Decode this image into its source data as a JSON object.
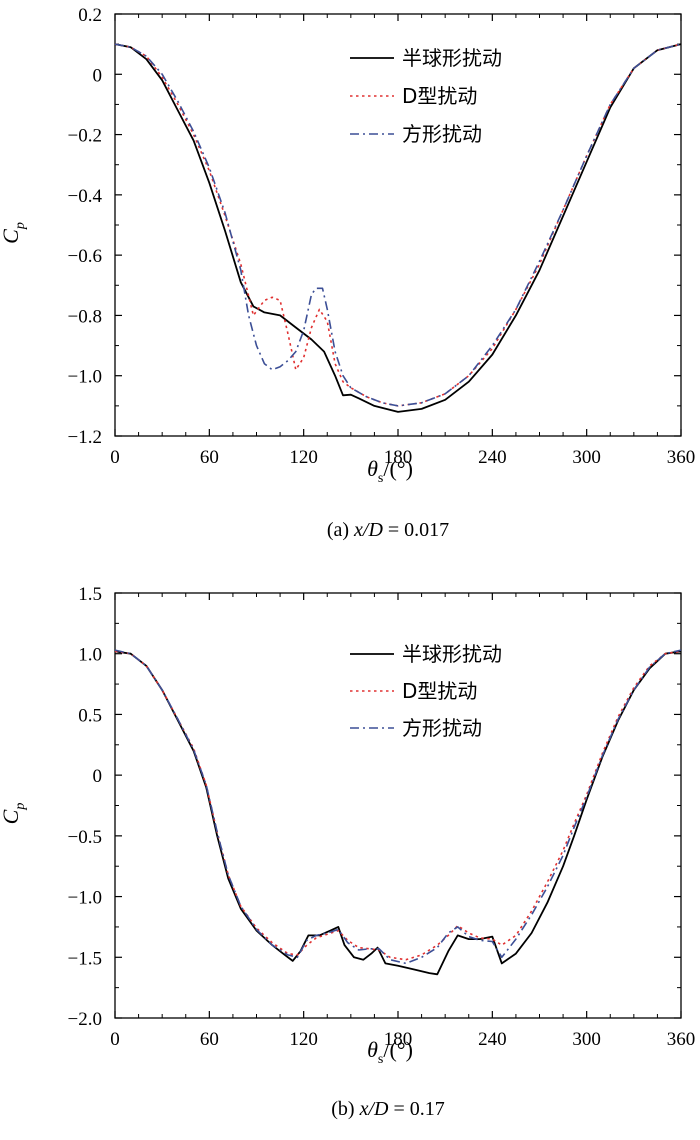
{
  "chart_data": [
    {
      "type": "line",
      "caption_prefix": "(a)  ",
      "caption_var": "x/D",
      "caption_value": " = 0.017",
      "xlabel_sym": "θ",
      "xlabel_sub": "s",
      "xlabel_unit": "/(°)",
      "ylabel_sym": "C",
      "ylabel_sub": "p",
      "xlim": [
        0,
        360
      ],
      "ylim": [
        -1.2,
        0.2
      ],
      "xticks": [
        0,
        60,
        120,
        180,
        240,
        300,
        360
      ],
      "xticklabels": [
        "0",
        "60",
        "120",
        "180",
        "240",
        "300",
        "360"
      ],
      "yticks": [
        0.2,
        0,
        -0.2,
        -0.4,
        -0.6,
        -0.8,
        -1.0,
        -1.2
      ],
      "yticklabels": [
        "0.2",
        "0",
        "−0.2",
        "−0.4",
        "−0.6",
        "−0.8",
        "−1.0",
        "−1.2"
      ],
      "legend_position": "top-right",
      "series": [
        {
          "name": "半球形扰动",
          "color": "#000000",
          "dash": "solid",
          "points": [
            [
              0,
              0.1
            ],
            [
              10,
              0.09
            ],
            [
              20,
              0.05
            ],
            [
              30,
              -0.02
            ],
            [
              40,
              -0.12
            ],
            [
              50,
              -0.22
            ],
            [
              60,
              -0.36
            ],
            [
              70,
              -0.52
            ],
            [
              80,
              -0.69
            ],
            [
              88,
              -0.77
            ],
            [
              95,
              -0.79
            ],
            [
              105,
              -0.8
            ],
            [
              115,
              -0.84
            ],
            [
              125,
              -0.88
            ],
            [
              133,
              -0.92
            ],
            [
              140,
              -1.0
            ],
            [
              145,
              -1.065
            ],
            [
              150,
              -1.063
            ],
            [
              155,
              -1.075
            ],
            [
              165,
              -1.1
            ],
            [
              180,
              -1.12
            ],
            [
              195,
              -1.11
            ],
            [
              210,
              -1.08
            ],
            [
              225,
              -1.02
            ],
            [
              240,
              -0.93
            ],
            [
              255,
              -0.8
            ],
            [
              270,
              -0.65
            ],
            [
              285,
              -0.47
            ],
            [
              300,
              -0.29
            ],
            [
              315,
              -0.11
            ],
            [
              330,
              0.02
            ],
            [
              345,
              0.08
            ],
            [
              360,
              0.1
            ]
          ]
        },
        {
          "name": "D型扰动",
          "color": "#e03030",
          "dash": "dotted",
          "points": [
            [
              0,
              0.1
            ],
            [
              10,
              0.09
            ],
            [
              20,
              0.06
            ],
            [
              30,
              -0.01
            ],
            [
              40,
              -0.1
            ],
            [
              50,
              -0.2
            ],
            [
              60,
              -0.32
            ],
            [
              70,
              -0.47
            ],
            [
              80,
              -0.63
            ],
            [
              88,
              -0.8
            ],
            [
              95,
              -0.75
            ],
            [
              100,
              -0.74
            ],
            [
              105,
              -0.75
            ],
            [
              110,
              -0.86
            ],
            [
              115,
              -0.98
            ],
            [
              120,
              -0.94
            ],
            [
              125,
              -0.84
            ],
            [
              130,
              -0.78
            ],
            [
              135,
              -0.82
            ],
            [
              140,
              -0.96
            ],
            [
              145,
              -1.02
            ],
            [
              150,
              -1.04
            ],
            [
              160,
              -1.07
            ],
            [
              170,
              -1.09
            ],
            [
              180,
              -1.1
            ],
            [
              195,
              -1.09
            ],
            [
              210,
              -1.06
            ],
            [
              225,
              -1.0
            ],
            [
              240,
              -0.91
            ],
            [
              255,
              -0.78
            ],
            [
              270,
              -0.63
            ],
            [
              285,
              -0.45
            ],
            [
              300,
              -0.27
            ],
            [
              315,
              -0.1
            ],
            [
              330,
              0.02
            ],
            [
              345,
              0.08
            ],
            [
              360,
              0.1
            ]
          ]
        },
        {
          "name": "方形扰动",
          "color": "#3c4f96",
          "dash": "dashdot",
          "points": [
            [
              0,
              0.1
            ],
            [
              10,
              0.09
            ],
            [
              20,
              0.06
            ],
            [
              30,
              0.0
            ],
            [
              40,
              -0.09
            ],
            [
              50,
              -0.19
            ],
            [
              60,
              -0.31
            ],
            [
              70,
              -0.46
            ],
            [
              80,
              -0.65
            ],
            [
              85,
              -0.8
            ],
            [
              90,
              -0.9
            ],
            [
              95,
              -0.96
            ],
            [
              100,
              -0.98
            ],
            [
              105,
              -0.97
            ],
            [
              110,
              -0.95
            ],
            [
              115,
              -0.92
            ],
            [
              120,
              -0.85
            ],
            [
              125,
              -0.73
            ],
            [
              128,
              -0.71
            ],
            [
              132,
              -0.71
            ],
            [
              135,
              -0.78
            ],
            [
              140,
              -0.92
            ],
            [
              145,
              -1.0
            ],
            [
              150,
              -1.04
            ],
            [
              160,
              -1.07
            ],
            [
              170,
              -1.09
            ],
            [
              180,
              -1.1
            ],
            [
              195,
              -1.09
            ],
            [
              210,
              -1.06
            ],
            [
              225,
              -1.0
            ],
            [
              240,
              -0.9
            ],
            [
              255,
              -0.78
            ],
            [
              270,
              -0.62
            ],
            [
              285,
              -0.45
            ],
            [
              300,
              -0.27
            ],
            [
              315,
              -0.1
            ],
            [
              330,
              0.02
            ],
            [
              345,
              0.08
            ],
            [
              360,
              0.1
            ]
          ]
        }
      ]
    },
    {
      "type": "line",
      "caption_prefix": "(b)  ",
      "caption_var": "x/D",
      "caption_value": " = 0.17",
      "xlabel_sym": "θ",
      "xlabel_sub": "s",
      "xlabel_unit": "/(°)",
      "ylabel_sym": "C",
      "ylabel_sub": "p",
      "xlim": [
        0,
        360
      ],
      "ylim": [
        -2.0,
        1.5
      ],
      "xticks": [
        0,
        60,
        120,
        180,
        240,
        300,
        360
      ],
      "xticklabels": [
        "0",
        "60",
        "120",
        "180",
        "240",
        "300",
        "360"
      ],
      "yticks": [
        1.5,
        1.0,
        0.5,
        0,
        -0.5,
        -1.0,
        -1.5,
        -2.0
      ],
      "yticklabels": [
        "1.5",
        "1.0",
        "0.5",
        "0",
        "−0.5",
        "−1.0",
        "−1.5",
        "−2.0"
      ],
      "legend_position": "top-right",
      "series": [
        {
          "name": "半球形扰动",
          "color": "#000000",
          "dash": "solid",
          "points": [
            [
              0,
              1.02
            ],
            [
              10,
              1.0
            ],
            [
              20,
              0.9
            ],
            [
              30,
              0.7
            ],
            [
              40,
              0.45
            ],
            [
              50,
              0.2
            ],
            [
              58,
              -0.1
            ],
            [
              65,
              -0.5
            ],
            [
              72,
              -0.85
            ],
            [
              80,
              -1.1
            ],
            [
              90,
              -1.28
            ],
            [
              100,
              -1.4
            ],
            [
              108,
              -1.48
            ],
            [
              113,
              -1.53
            ],
            [
              118,
              -1.45
            ],
            [
              123,
              -1.32
            ],
            [
              130,
              -1.32
            ],
            [
              137,
              -1.28
            ],
            [
              142,
              -1.25
            ],
            [
              146,
              -1.4
            ],
            [
              152,
              -1.5
            ],
            [
              158,
              -1.52
            ],
            [
              163,
              -1.47
            ],
            [
              167,
              -1.42
            ],
            [
              172,
              -1.55
            ],
            [
              180,
              -1.57
            ],
            [
              190,
              -1.6
            ],
            [
              200,
              -1.63
            ],
            [
              205,
              -1.64
            ],
            [
              212,
              -1.45
            ],
            [
              218,
              -1.32
            ],
            [
              225,
              -1.35
            ],
            [
              232,
              -1.35
            ],
            [
              240,
              -1.33
            ],
            [
              246,
              -1.55
            ],
            [
              255,
              -1.47
            ],
            [
              265,
              -1.3
            ],
            [
              275,
              -1.05
            ],
            [
              285,
              -0.75
            ],
            [
              292,
              -0.5
            ],
            [
              300,
              -0.2
            ],
            [
              310,
              0.15
            ],
            [
              320,
              0.45
            ],
            [
              330,
              0.7
            ],
            [
              340,
              0.88
            ],
            [
              350,
              1.0
            ],
            [
              360,
              1.02
            ]
          ]
        },
        {
          "name": "D型扰动",
          "color": "#e03030",
          "dash": "dotted",
          "points": [
            [
              0,
              1.02
            ],
            [
              10,
              1.0
            ],
            [
              20,
              0.9
            ],
            [
              30,
              0.7
            ],
            [
              40,
              0.46
            ],
            [
              50,
              0.22
            ],
            [
              58,
              -0.08
            ],
            [
              65,
              -0.47
            ],
            [
              72,
              -0.82
            ],
            [
              80,
              -1.08
            ],
            [
              90,
              -1.26
            ],
            [
              100,
              -1.38
            ],
            [
              110,
              -1.47
            ],
            [
              116,
              -1.48
            ],
            [
              122,
              -1.4
            ],
            [
              128,
              -1.34
            ],
            [
              135,
              -1.31
            ],
            [
              142,
              -1.28
            ],
            [
              148,
              -1.36
            ],
            [
              155,
              -1.42
            ],
            [
              162,
              -1.43
            ],
            [
              168,
              -1.44
            ],
            [
              175,
              -1.5
            ],
            [
              185,
              -1.52
            ],
            [
              195,
              -1.48
            ],
            [
              205,
              -1.4
            ],
            [
              212,
              -1.32
            ],
            [
              218,
              -1.24
            ],
            [
              225,
              -1.3
            ],
            [
              232,
              -1.34
            ],
            [
              240,
              -1.35
            ],
            [
              246,
              -1.4
            ],
            [
              255,
              -1.32
            ],
            [
              265,
              -1.12
            ],
            [
              275,
              -0.88
            ],
            [
              285,
              -0.62
            ],
            [
              292,
              -0.4
            ],
            [
              300,
              -0.16
            ],
            [
              310,
              0.18
            ],
            [
              320,
              0.48
            ],
            [
              330,
              0.72
            ],
            [
              340,
              0.9
            ],
            [
              350,
              1.0
            ],
            [
              360,
              1.02
            ]
          ]
        },
        {
          "name": "方形扰动",
          "color": "#3c4f96",
          "dash": "dashdot",
          "points": [
            [
              0,
              1.03
            ],
            [
              10,
              1.0
            ],
            [
              20,
              0.9
            ],
            [
              30,
              0.7
            ],
            [
              40,
              0.46
            ],
            [
              50,
              0.21
            ],
            [
              58,
              -0.08
            ],
            [
              65,
              -0.47
            ],
            [
              72,
              -0.82
            ],
            [
              80,
              -1.08
            ],
            [
              90,
              -1.27
            ],
            [
              100,
              -1.4
            ],
            [
              110,
              -1.48
            ],
            [
              116,
              -1.5
            ],
            [
              122,
              -1.36
            ],
            [
              128,
              -1.32
            ],
            [
              135,
              -1.3
            ],
            [
              142,
              -1.27
            ],
            [
              148,
              -1.38
            ],
            [
              155,
              -1.44
            ],
            [
              162,
              -1.43
            ],
            [
              168,
              -1.43
            ],
            [
              175,
              -1.52
            ],
            [
              185,
              -1.55
            ],
            [
              195,
              -1.5
            ],
            [
              205,
              -1.42
            ],
            [
              212,
              -1.3
            ],
            [
              218,
              -1.25
            ],
            [
              225,
              -1.33
            ],
            [
              232,
              -1.36
            ],
            [
              240,
              -1.37
            ],
            [
              246,
              -1.5
            ],
            [
              255,
              -1.35
            ],
            [
              265,
              -1.15
            ],
            [
              275,
              -0.92
            ],
            [
              285,
              -0.66
            ],
            [
              292,
              -0.43
            ],
            [
              300,
              -0.18
            ],
            [
              310,
              0.16
            ],
            [
              320,
              0.46
            ],
            [
              330,
              0.7
            ],
            [
              340,
              0.89
            ],
            [
              350,
              1.0
            ],
            [
              360,
              1.03
            ]
          ]
        }
      ]
    }
  ]
}
